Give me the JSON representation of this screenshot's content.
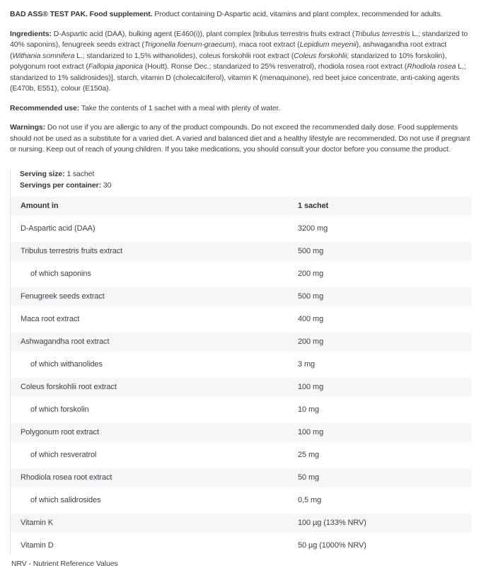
{
  "colors": {
    "text": "#3e3e4b",
    "stripe": "#f6f6f7",
    "rule": "#e4e4e8",
    "background": "#ffffff"
  },
  "intro": {
    "title_bold": "BAD ASS® TEST PAK. Food supplement.",
    "title_rest": " Product containing D-Aspartic acid, vitamins and plant complex, recommended for adults."
  },
  "ingredients": {
    "label": "Ingredients:",
    "segments": [
      {
        "t": " D-Aspartic acid (DAA), bulking agent (E460(i)), plant complex [tribulus terrestris fruits extract ("
      },
      {
        "t": "Tribulus terrestris",
        "i": true
      },
      {
        "t": " L.; standarized to 40% saponins), fenugreek seeds extract ("
      },
      {
        "t": "Trigonella foenum-graecum",
        "i": true
      },
      {
        "t": "), maca root extract ("
      },
      {
        "t": "Lepidium meyenii",
        "i": true
      },
      {
        "t": "), ashwagandha root extract ("
      },
      {
        "t": "Withania somnifera",
        "i": true
      },
      {
        "t": " L.; standarized to 1,5% withanolides), coleus forskohlii root extract ("
      },
      {
        "t": "Coleus forskohlii;",
        "i": true
      },
      {
        "t": " standarized to 10% forskolin), polygonum root extract ("
      },
      {
        "t": "Fallopia japonica",
        "i": true
      },
      {
        "t": " (Houtt). Ronse Dec.; standarized to 25% resveratrol), rhodiola rosea root extract ("
      },
      {
        "t": "Rhodiola rosea",
        "i": true
      },
      {
        "t": " L.; standarized to 1% salidrosides)], starch, vitamin D (cholecalciferol), vitamin K (menaquinone), red beet juice concentrate, anti-caking agents (E470b, E551), colour (E150a)."
      }
    ]
  },
  "recommended_use": {
    "label": "Recommended use:",
    "text": " Take the contents of 1 sachet with a meal with plenty of water."
  },
  "warnings": {
    "label": "Warnings:",
    "text": " Do not use if you are allergic to any of the product compounds. Do not exceed the recommended daily dose. Food supplements should not be used as a substitute for a varied diet. A varied and balanced diet and a healthy lifestyle are recommended. Do not use if pregnant or nursing. Keep out of reach of young children. If you take medications, you should consult your doctor before you consume the product."
  },
  "serving": {
    "size_label": "Serving size:",
    "size_value": "1 sachet",
    "per_container_label": "Servings per container:",
    "per_container_value": "30"
  },
  "table": {
    "header": {
      "col1": "Amount in",
      "col2": "1 sachet"
    },
    "rows": [
      {
        "name": "D-Aspartic acid (DAA)",
        "value": "3200 mg",
        "indent": false
      },
      {
        "name": "Tribulus terrestris fruits extract",
        "value": "500 mg",
        "indent": false
      },
      {
        "name": "of which saponins",
        "value": "200 mg",
        "indent": true
      },
      {
        "name": "Fenugreek seeds extract",
        "value": "500 mg",
        "indent": false
      },
      {
        "name": "Maca root extract",
        "value": "400 mg",
        "indent": false
      },
      {
        "name": "Ashwagandha root extract",
        "value": "200 mg",
        "indent": false
      },
      {
        "name": "of which withanolides",
        "value": "3 mg",
        "indent": true
      },
      {
        "name": "Coleus forskohlii root extract",
        "value": "100 mg",
        "indent": false
      },
      {
        "name": "of which forskolin",
        "value": "10 mg",
        "indent": true
      },
      {
        "name": "Polygonum root extract",
        "value": "100 mg",
        "indent": false
      },
      {
        "name": "of which resveratrol",
        "value": "25 mg",
        "indent": true
      },
      {
        "name": "Rhodiola rosea root extract",
        "value": "50 mg",
        "indent": false
      },
      {
        "name": "of which salidrosides",
        "value": "0,5 mg",
        "indent": true
      },
      {
        "name": "Vitamin K",
        "value": "100 µg (133% NRV)",
        "indent": false
      },
      {
        "name": "Vitamin D",
        "value": "50 µg (1000% NRV)",
        "indent": false
      }
    ]
  },
  "footnote": "NRV - Nutrient Reference Values"
}
